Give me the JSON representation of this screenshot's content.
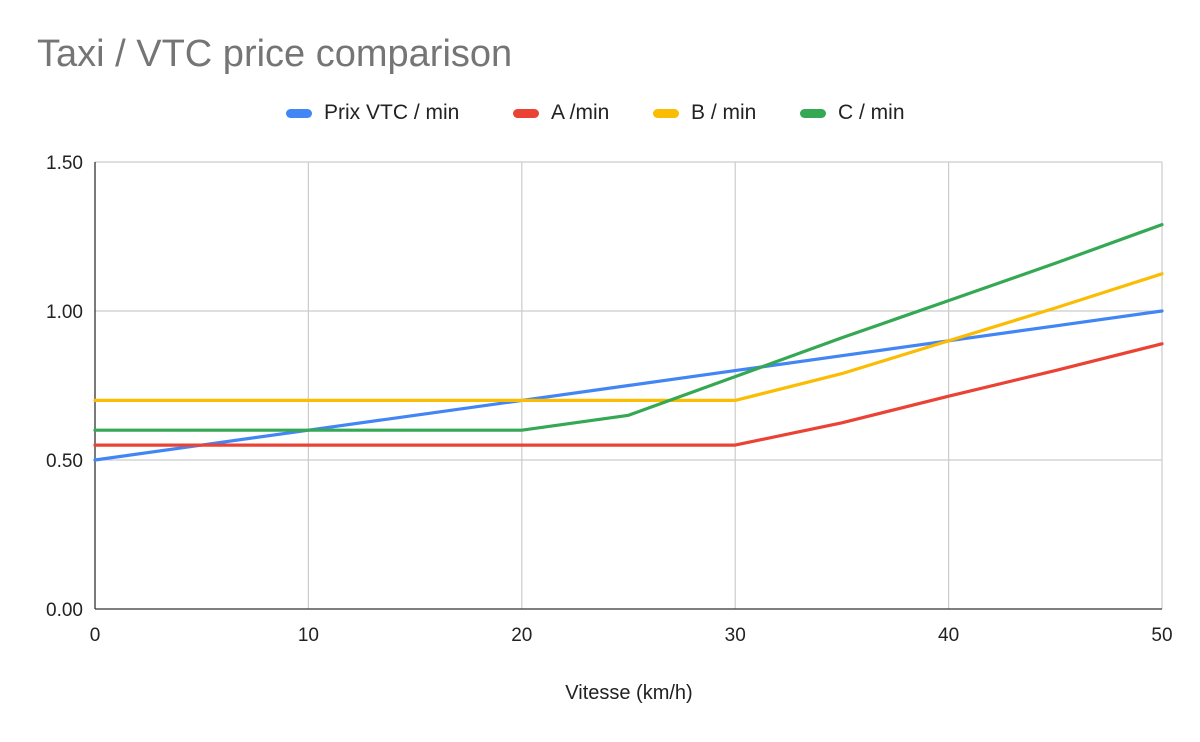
{
  "chart_data": {
    "type": "line",
    "title": "Taxi / VTC price comparison",
    "xlabel": "Vitesse (km/h)",
    "ylabel": "",
    "xlim": [
      0,
      50
    ],
    "ylim": [
      0,
      1.5
    ],
    "x_ticks": [
      "0",
      "10",
      "20",
      "30",
      "40",
      "50"
    ],
    "y_ticks": [
      "0.00",
      "0.50",
      "1.00",
      "1.50"
    ],
    "grid": true,
    "legend_position": "top",
    "x": [
      0,
      5,
      10,
      15,
      20,
      25,
      30,
      35,
      40,
      45,
      50
    ],
    "series": [
      {
        "name": "Prix VTC / min",
        "color": "#4285F4",
        "values": [
          0.5,
          0.55,
          0.6,
          0.65,
          0.7,
          0.75,
          0.8,
          0.85,
          0.9,
          0.95,
          1.0
        ]
      },
      {
        "name": "A /min",
        "color": "#EA4335",
        "values": [
          0.55,
          0.55,
          0.55,
          0.55,
          0.55,
          0.55,
          0.55,
          0.625,
          0.714,
          0.8,
          0.89
        ]
      },
      {
        "name": "B / min",
        "color": "#FBBC04",
        "values": [
          0.7,
          0.7,
          0.7,
          0.7,
          0.7,
          0.7,
          0.7,
          0.79,
          0.9,
          1.01,
          1.125
        ]
      },
      {
        "name": "C / min",
        "color": "#34A853",
        "values": [
          0.6,
          0.6,
          0.6,
          0.6,
          0.6,
          0.65,
          0.78,
          0.91,
          1.035,
          1.16,
          1.29
        ]
      }
    ]
  }
}
